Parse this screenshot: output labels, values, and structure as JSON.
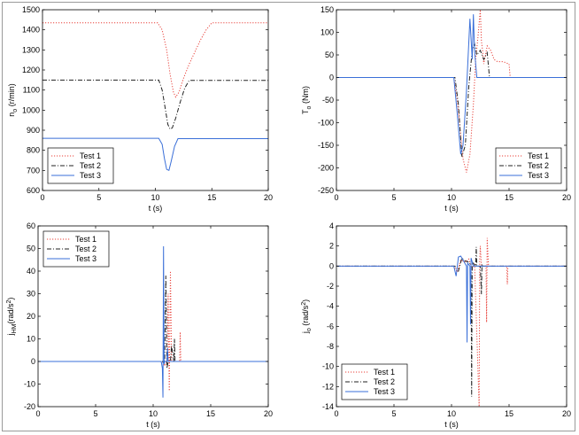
{
  "colors": {
    "test1": "#e8413a",
    "test2": "#222222",
    "test3": "#3a6fd8",
    "axis": "#000000"
  },
  "chart_data": [
    {
      "type": "line",
      "xlabel": "t (s)",
      "ylabel_main": "n",
      "ylabel_sub": "o",
      "ylabel_tail": " (r/min)",
      "xlim": [
        0,
        20
      ],
      "ylim": [
        600,
        1500
      ],
      "xticks": [
        0,
        5,
        10,
        15,
        20
      ],
      "yticks": [
        600,
        700,
        800,
        900,
        1000,
        1100,
        1200,
        1300,
        1400,
        1500
      ],
      "grid": false,
      "legend_position": "bottom-left",
      "series": [
        {
          "name": "Test 1",
          "style": "dotted",
          "x": [
            0,
            10.2,
            10.6,
            11.0,
            11.3,
            11.6,
            11.8,
            12.1,
            12.5,
            13.0,
            13.5,
            14.0,
            14.5,
            15.0,
            20
          ],
          "y": [
            1435,
            1435,
            1400,
            1300,
            1180,
            1090,
            1065,
            1090,
            1160,
            1230,
            1290,
            1350,
            1400,
            1435,
            1435
          ]
        },
        {
          "name": "Test 2",
          "style": "dashdot",
          "x": [
            0,
            10.3,
            10.6,
            10.9,
            11.1,
            11.3,
            11.5,
            11.8,
            12.2,
            12.6,
            13.0,
            20
          ],
          "y": [
            1150,
            1150,
            1100,
            1000,
            930,
            905,
            912,
            960,
            1040,
            1110,
            1148,
            1148
          ]
        },
        {
          "name": "Test 3",
          "style": "solid",
          "x": [
            0,
            10.3,
            10.6,
            10.8,
            11.0,
            11.2,
            11.4,
            11.7,
            12.0,
            20
          ],
          "y": [
            860,
            860,
            830,
            760,
            705,
            700,
            745,
            820,
            858,
            858
          ]
        }
      ]
    },
    {
      "type": "line",
      "xlabel": "t (s)",
      "ylabel_main": "T",
      "ylabel_sub": "o",
      "ylabel_tail": " (Nm)",
      "xlim": [
        0,
        20
      ],
      "ylim": [
        -250,
        150
      ],
      "xticks": [
        0,
        5,
        10,
        15,
        20
      ],
      "yticks": [
        -250,
        -200,
        -150,
        -100,
        -50,
        0,
        50,
        100,
        150
      ],
      "grid": false,
      "legend_position": "bottom-right",
      "series": [
        {
          "name": "Test 1",
          "style": "dotted",
          "x": [
            0,
            10.2,
            10.5,
            11.0,
            11.3,
            11.6,
            11.9,
            12.1,
            12.3,
            12.5,
            12.6,
            12.7,
            12.8,
            13.1,
            13.4,
            13.7,
            14.0,
            14.5,
            15.0,
            15.1,
            20
          ],
          "y": [
            0,
            0,
            -50,
            -180,
            -210,
            -170,
            -60,
            40,
            90,
            150,
            80,
            60,
            30,
            70,
            60,
            40,
            35,
            35,
            30,
            0,
            0
          ]
        },
        {
          "name": "Test 2",
          "style": "dashdot",
          "x": [
            0,
            10.3,
            10.6,
            10.9,
            11.2,
            11.5,
            11.8,
            12.0,
            12.2,
            12.5,
            12.8,
            13.1,
            13.3,
            20
          ],
          "y": [
            0,
            0,
            -60,
            -175,
            -150,
            -20,
            60,
            75,
            50,
            60,
            40,
            55,
            0,
            0
          ]
        },
        {
          "name": "Test 3",
          "style": "solid",
          "x": [
            0,
            10.2,
            10.5,
            10.8,
            11.0,
            11.3,
            11.6,
            11.8,
            11.9,
            12.0,
            12.2,
            12.4,
            12.6,
            20
          ],
          "y": [
            0,
            0,
            -80,
            -170,
            -150,
            -30,
            130,
            40,
            140,
            60,
            0,
            0,
            0,
            0
          ]
        }
      ]
    },
    {
      "type": "line",
      "xlabel": "t (s)",
      "ylabel_main": "j",
      "ylabel_sub": "HM",
      "ylabel_tail": "(rad/s",
      "ylabel_sup": "2",
      "ylabel_end": ")",
      "xlim": [
        0,
        20
      ],
      "ylim": [
        -20,
        60
      ],
      "xticks": [
        0,
        5,
        10,
        15,
        20
      ],
      "yticks": [
        -20,
        -10,
        0,
        10,
        20,
        30,
        40,
        50,
        60
      ],
      "grid": false,
      "legend_position": "top-left",
      "series": [
        {
          "name": "Test 1",
          "style": "dotted",
          "x": [
            0,
            10.8,
            11.0,
            11.2,
            11.3,
            11.4,
            11.5,
            11.6,
            11.7,
            12.3,
            12.35,
            12.4,
            20
          ],
          "y": [
            0,
            0,
            -2,
            0,
            30,
            -13,
            40,
            0,
            0,
            0,
            13,
            0,
            0
          ]
        },
        {
          "name": "Test 2",
          "style": "dashdot",
          "x": [
            0,
            10.9,
            11.0,
            11.1,
            11.2,
            11.3,
            11.5,
            11.6,
            11.8,
            11.85,
            11.9,
            20
          ],
          "y": [
            0,
            0,
            -1,
            38,
            -3,
            0,
            0,
            7,
            0,
            10,
            0,
            0
          ]
        },
        {
          "name": "Test 3",
          "style": "solid",
          "x": [
            0,
            10.7,
            10.8,
            10.85,
            10.9,
            10.95,
            11.0,
            11.2,
            11.25,
            11.3,
            20
          ],
          "y": [
            0,
            0,
            -3,
            -16,
            51,
            -1,
            0,
            0,
            6,
            0,
            0
          ]
        }
      ]
    },
    {
      "type": "line",
      "xlabel": "t (s)",
      "ylabel_main": "j",
      "ylabel_sub": "o",
      "ylabel_tail": " (rad/s",
      "ylabel_sup": "2",
      "ylabel_end": ")",
      "xlim": [
        0,
        20
      ],
      "ylim": [
        -14,
        4
      ],
      "xticks": [
        0,
        5,
        10,
        15,
        20
      ],
      "yticks": [
        -14,
        -12,
        -10,
        -8,
        -6,
        -4,
        -2,
        0,
        2,
        4
      ],
      "grid": false,
      "legend_position": "bottom-left",
      "series": [
        {
          "name": "Test 1",
          "style": "dotted",
          "x": [
            0,
            10.2,
            10.5,
            10.8,
            11.2,
            11.5,
            11.8,
            12.0,
            12.4,
            12.45,
            12.5,
            12.6,
            13.0,
            13.05,
            13.1,
            13.2,
            13.25,
            13.3,
            14.8,
            14.85,
            14.9,
            20
          ],
          "y": [
            0,
            0,
            -0.6,
            0.6,
            0.4,
            0.7,
            -0.3,
            0.3,
            -14,
            0.5,
            2,
            0,
            0,
            -5.6,
            2.8,
            0.2,
            0,
            0,
            0,
            -1.8,
            0,
            0
          ]
        },
        {
          "name": "Test 2",
          "style": "dashdot",
          "x": [
            0,
            10.3,
            10.6,
            10.9,
            11.2,
            11.5,
            11.7,
            11.75,
            11.8,
            12.1,
            12.15,
            12.2,
            12.5,
            12.6,
            12.65,
            12.7,
            20
          ],
          "y": [
            0,
            0,
            -0.5,
            0.8,
            0.5,
            0.4,
            0,
            -13,
            0.4,
            0,
            1.9,
            0,
            0,
            -2.8,
            0.2,
            0,
            0
          ]
        },
        {
          "name": "Test 3",
          "style": "solid",
          "x": [
            0,
            10.2,
            10.4,
            10.6,
            10.8,
            11.0,
            11.3,
            11.35,
            11.4,
            11.6,
            11.65,
            11.7,
            11.9,
            20
          ],
          "y": [
            0,
            0,
            -1.0,
            0.9,
            1.0,
            0.6,
            0,
            -7.6,
            0.3,
            0,
            -5.8,
            0.8,
            0,
            0
          ]
        }
      ]
    }
  ]
}
